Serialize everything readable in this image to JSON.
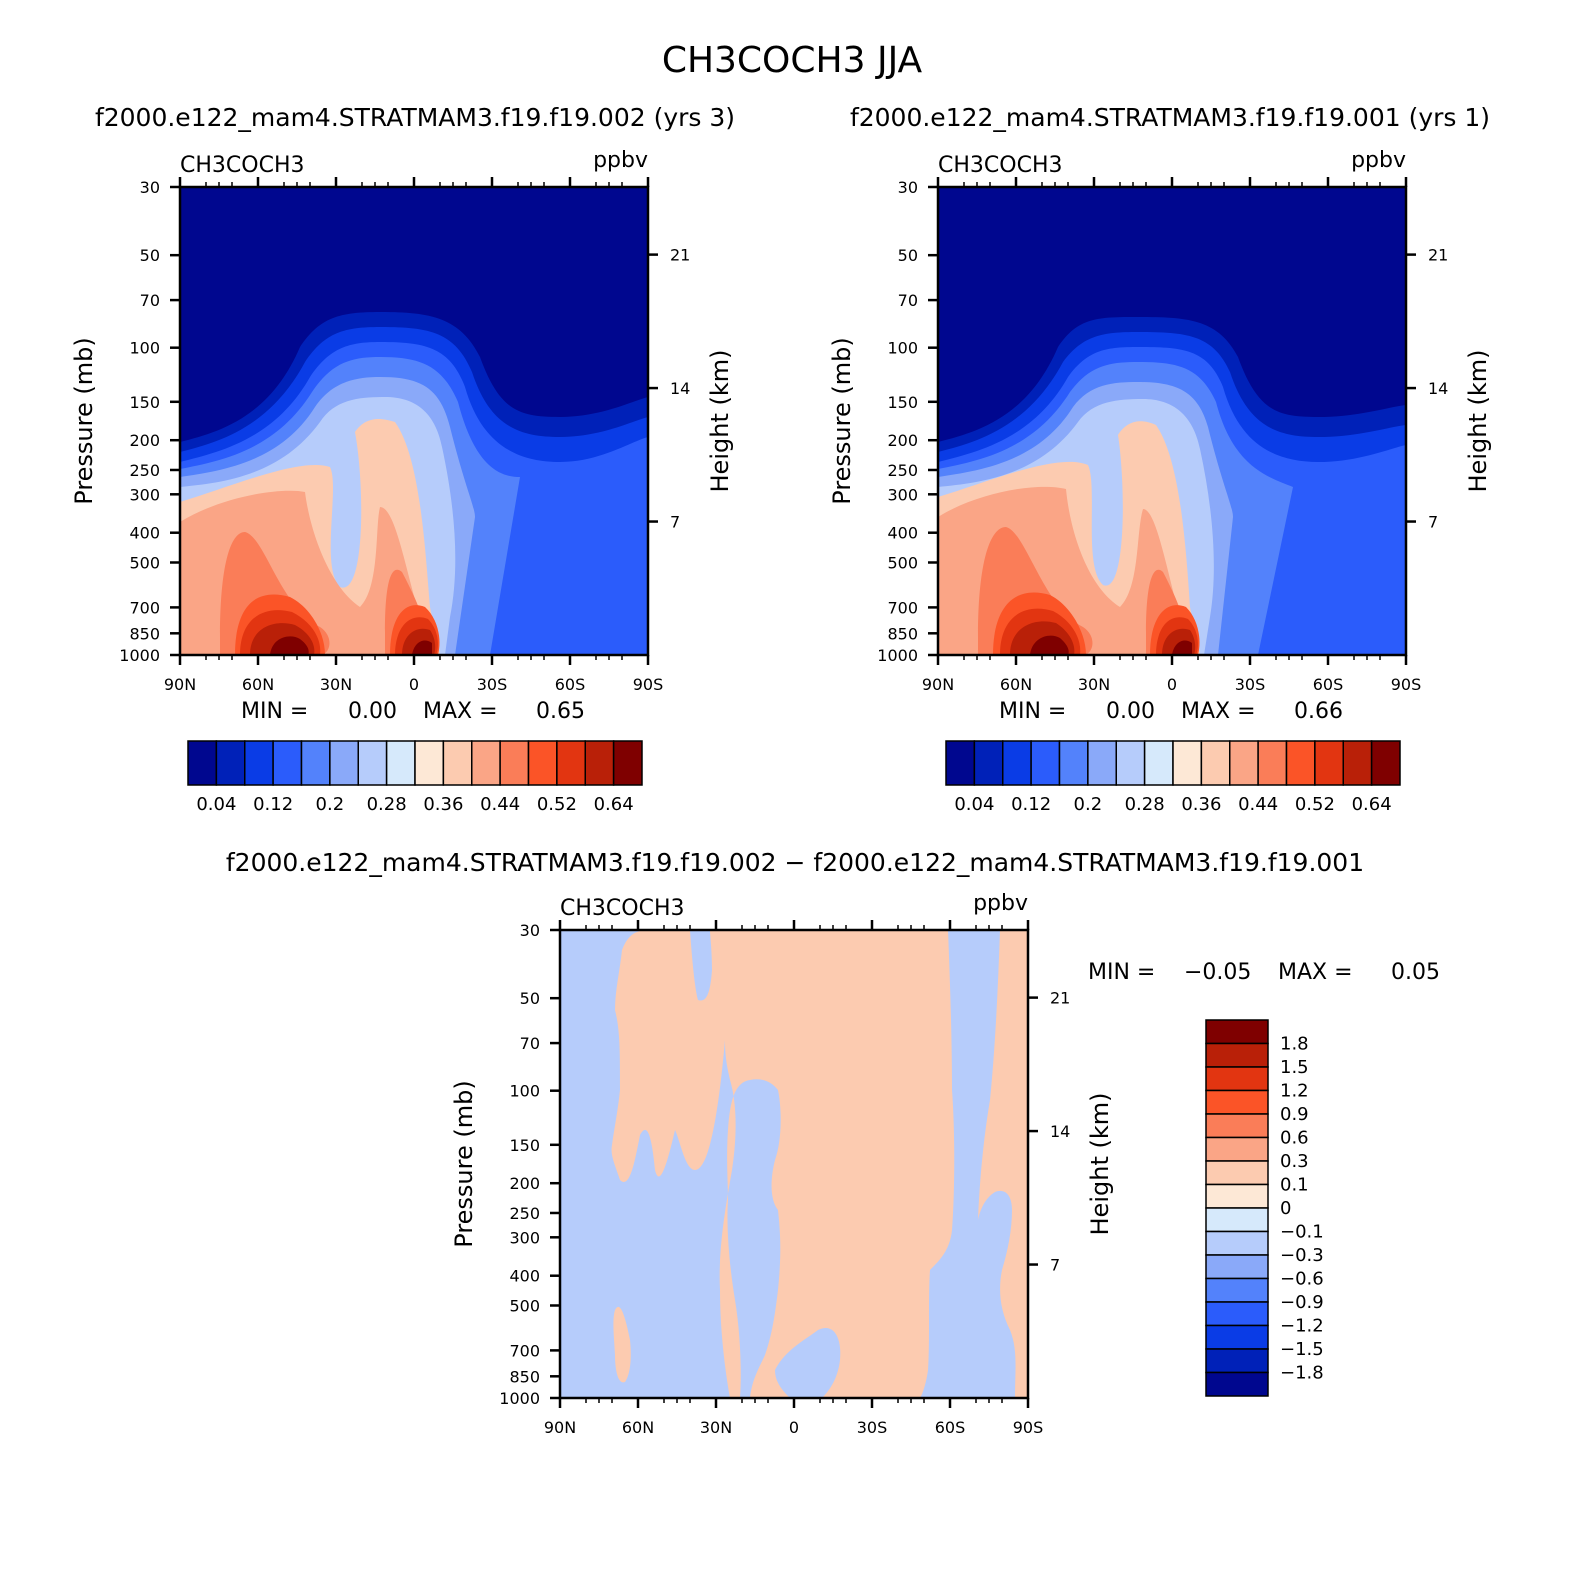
{
  "title": "CH3COCH3 JJA",
  "colors": {
    "positive": [
      "#fde8d6",
      "#fccbb0",
      "#faa586",
      "#fa7d58",
      "#fb5427",
      "#e23511",
      "#b92008",
      "#7f0000"
    ],
    "negative": [
      "#d6e9fb",
      "#b6ccfb",
      "#8aa9f9",
      "#5382fb",
      "#2b5cfb",
      "#0a3ce6",
      "#0021b8",
      "#00078f"
    ],
    "frame": "#000000"
  },
  "panels": [
    {
      "title": "f2000.e122_mam4.STRATMAM3.f19.f19.002 (yrs 3)",
      "left_label": "CH3COCH3",
      "right_label": "ppbv",
      "y_axis_label": "Pressure (mb)",
      "y2_axis_label": "Height (km)",
      "stats": {
        "min_label": "MIN =",
        "min_value": "0.00",
        "max_label": "MAX =",
        "max_value": "0.65"
      },
      "colorbar_labels": [
        "0.04",
        "0.12",
        "0.2",
        "0.28",
        "0.36",
        "0.44",
        "0.52",
        "0.64"
      ]
    },
    {
      "title": "f2000.e122_mam4.STRATMAM3.f19.f19.001 (yrs 1)",
      "left_label": "CH3COCH3",
      "right_label": "ppbv",
      "y_axis_label": "Pressure (mb)",
      "y2_axis_label": "Height (km)",
      "stats": {
        "min_label": "MIN =",
        "min_value": "0.00",
        "max_label": "MAX =",
        "max_value": "0.66"
      },
      "colorbar_labels": [
        "0.04",
        "0.12",
        "0.2",
        "0.28",
        "0.36",
        "0.44",
        "0.52",
        "0.64"
      ]
    },
    {
      "title": "f2000.e122_mam4.STRATMAM3.f19.f19.002 − f2000.e122_mam4.STRATMAM3.f19.f19.001",
      "left_label": "CH3COCH3",
      "right_label": "ppbv",
      "y_axis_label": "Pressure (mb)",
      "y2_axis_label": "Height (km)",
      "stats": {
        "min_label": "MIN =",
        "min_value": "−0.05",
        "max_label": "MAX =",
        "max_value": "0.05"
      },
      "colorbar_labels": [
        "1.8",
        "1.5",
        "1.2",
        "0.9",
        "0.6",
        "0.3",
        "0.1",
        "0",
        "−0.1",
        "−0.3",
        "−0.6",
        "−0.9",
        "−1.2",
        "−1.5",
        "−1.8"
      ]
    }
  ],
  "chart_data": [
    {
      "type": "heatmap",
      "title": "f2000.e122_mam4.STRATMAM3.f19.f19.002 (yrs 3)",
      "variable": "CH3COCH3",
      "units": "ppbv",
      "x_ticks": [
        "90N",
        "60N",
        "30N",
        "0",
        "30S",
        "60S",
        "90S"
      ],
      "x_values": [
        90,
        60,
        30,
        0,
        -30,
        -60,
        -90
      ],
      "y_ticks": [
        "30",
        "50",
        "70",
        "100",
        "150",
        "200",
        "250",
        "300",
        "400",
        "500",
        "700",
        "850",
        "1000"
      ],
      "y_values": [
        30,
        50,
        70,
        100,
        150,
        200,
        250,
        300,
        400,
        500,
        700,
        850,
        1000
      ],
      "y2_ticks": [
        "21",
        "14",
        "7"
      ],
      "y2_values": [
        21,
        14,
        7
      ],
      "ylabel": "Pressure (mb)",
      "y2label": "Height (km)",
      "levels": [
        0.04,
        0.08,
        0.12,
        0.16,
        0.2,
        0.24,
        0.28,
        0.32,
        0.36,
        0.4,
        0.44,
        0.48,
        0.52,
        0.56,
        0.64
      ],
      "min": 0.0,
      "max": 0.65
    },
    {
      "type": "heatmap",
      "title": "f2000.e122_mam4.STRATMAM3.f19.f19.001 (yrs 1)",
      "variable": "CH3COCH3",
      "units": "ppbv",
      "x_ticks": [
        "90N",
        "60N",
        "30N",
        "0",
        "30S",
        "60S",
        "90S"
      ],
      "x_values": [
        90,
        60,
        30,
        0,
        -30,
        -60,
        -90
      ],
      "y_ticks": [
        "30",
        "50",
        "70",
        "100",
        "150",
        "200",
        "250",
        "300",
        "400",
        "500",
        "700",
        "850",
        "1000"
      ],
      "y_values": [
        30,
        50,
        70,
        100,
        150,
        200,
        250,
        300,
        400,
        500,
        700,
        850,
        1000
      ],
      "y2_ticks": [
        "21",
        "14",
        "7"
      ],
      "y2_values": [
        21,
        14,
        7
      ],
      "ylabel": "Pressure (mb)",
      "y2label": "Height (km)",
      "levels": [
        0.04,
        0.08,
        0.12,
        0.16,
        0.2,
        0.24,
        0.28,
        0.32,
        0.36,
        0.4,
        0.44,
        0.48,
        0.52,
        0.56,
        0.64
      ],
      "min": 0.0,
      "max": 0.66
    },
    {
      "type": "heatmap",
      "title": "f2000.e122_mam4.STRATMAM3.f19.f19.002 − f2000.e122_mam4.STRATMAM3.f19.f19.001",
      "variable": "CH3COCH3",
      "units": "ppbv",
      "x_ticks": [
        "90N",
        "60N",
        "30N",
        "0",
        "30S",
        "60S",
        "90S"
      ],
      "x_values": [
        90,
        60,
        30,
        0,
        -30,
        -60,
        -90
      ],
      "y_ticks": [
        "30",
        "50",
        "70",
        "100",
        "150",
        "200",
        "250",
        "300",
        "400",
        "500",
        "700",
        "850",
        "1000"
      ],
      "y_values": [
        30,
        50,
        70,
        100,
        150,
        200,
        250,
        300,
        400,
        500,
        700,
        850,
        1000
      ],
      "y2_ticks": [
        "21",
        "14",
        "7"
      ],
      "y2_values": [
        21,
        14,
        7
      ],
      "ylabel": "Pressure (mb)",
      "y2label": "Height (km)",
      "levels": [
        -1.8,
        -1.5,
        -1.2,
        -0.9,
        -0.6,
        -0.3,
        -0.1,
        0,
        0.1,
        0.3,
        0.6,
        0.9,
        1.2,
        1.5,
        1.8
      ],
      "min": -0.05,
      "max": 0.05
    }
  ]
}
